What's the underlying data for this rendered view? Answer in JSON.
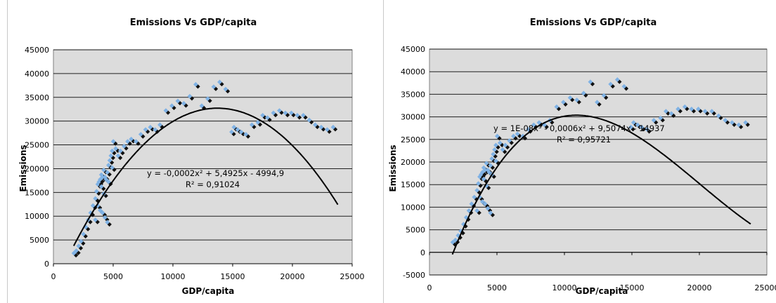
{
  "chart_data": [
    {
      "type": "scatter",
      "title": "Emissions Vs GDP/capita",
      "xlabel": "GDP/capita",
      "ylabel": "Emissions",
      "xlim": [
        0,
        25000
      ],
      "ylim": [
        0,
        45000
      ],
      "xticks": [
        0,
        5000,
        10000,
        15000,
        20000,
        25000
      ],
      "yticks": [
        0,
        5000,
        10000,
        15000,
        20000,
        25000,
        30000,
        35000,
        40000,
        45000
      ],
      "xtick_labels": [
        "0",
        "5000",
        "10000",
        "15000",
        "20000",
        "25000"
      ],
      "ytick_labels": [
        "0",
        "5000",
        "10000",
        "15000",
        "20000",
        "25000",
        "30000",
        "35000",
        "40000",
        "45000"
      ],
      "grid": "horizontal",
      "trendline": {
        "type": "polynomial",
        "degree": 2,
        "coefficients": [
          -0.0002,
          5.4925,
          -4994.9
        ],
        "equation": "y = -0,0002x² + 5,4925x - 4994,9",
        "r2": "R² = 0,91024",
        "x_range": [
          1700,
          23800
        ]
      },
      "colors": {
        "plot_bg": "#dcdcdc",
        "marker_dark": "#111111",
        "marker_light": "#7fb2e5",
        "line": "#000000"
      },
      "series": [
        {
          "x": [
            1800,
            2000,
            2200,
            2400,
            2600,
            2800,
            3000,
            3200,
            3400,
            3600,
            3700,
            3800,
            3900,
            4000,
            4100,
            4200,
            4300,
            4400,
            4500,
            4600,
            4700,
            4800,
            4900,
            5000,
            5100,
            5300,
            5500,
            5700,
            6000,
            6300,
            6600,
            7000,
            7400,
            7800,
            8200,
            8600,
            9000,
            9500,
            10000,
            10500,
            11000,
            11500,
            12000,
            12500,
            13000,
            13500,
            14000,
            14500,
            15000,
            15200,
            15500,
            15800,
            16200,
            16700,
            17200,
            17600,
            18000,
            18500,
            19000,
            19500,
            20000,
            20500,
            21000,
            21500,
            22000,
            22500,
            23000,
            23500,
            3800,
            4000,
            4200,
            4400,
            4600,
            3600,
            4100,
            4300,
            4700,
            5000
          ],
          "y": [
            2000,
            2500,
            3500,
            4500,
            6000,
            7500,
            9000,
            10500,
            12000,
            13500,
            15000,
            16500,
            17000,
            17500,
            18500,
            18000,
            19500,
            18000,
            17500,
            19000,
            20500,
            21500,
            22500,
            23500,
            25500,
            24000,
            22500,
            23500,
            24500,
            25500,
            26000,
            25500,
            27000,
            28000,
            28500,
            28000,
            29000,
            32000,
            33000,
            34000,
            33500,
            35000,
            37500,
            33000,
            34500,
            37000,
            38000,
            36500,
            27500,
            28500,
            28000,
            27500,
            27000,
            29000,
            29500,
            31000,
            30500,
            31500,
            32000,
            31500,
            31500,
            31000,
            31000,
            30000,
            29000,
            28500,
            28000,
            28500,
            12000,
            11000,
            10500,
            9500,
            8500,
            9000,
            16000,
            14500,
            17000,
            20000
          ]
        }
      ]
    },
    {
      "type": "scatter",
      "title": "Emissions Vs GDP/capita",
      "xlabel": "GDP/capita",
      "ylabel": "Emissions",
      "xlim": [
        0,
        25000
      ],
      "ylim": [
        -5000,
        45000
      ],
      "xticks": [
        0,
        5000,
        10000,
        15000,
        20000,
        25000
      ],
      "yticks": [
        -5000,
        0,
        5000,
        10000,
        15000,
        20000,
        25000,
        30000,
        35000,
        40000,
        45000
      ],
      "xtick_labels": [
        "0",
        "5000",
        "10000",
        "15000",
        "20000",
        "25000"
      ],
      "ytick_labels": [
        "-5000",
        "0",
        "5000",
        "10000",
        "15000",
        "20000",
        "25000",
        "30000",
        "35000",
        "40000",
        "45000"
      ],
      "grid": "horizontal",
      "trendline": {
        "type": "polynomial",
        "degree": 3,
        "equation": "y = 1E-08x³ - 0,0006x² + 9,5074x - 14937",
        "r2": "R² = 0,95721",
        "x_range": [
          1700,
          23800
        ]
      },
      "colors": {
        "plot_bg": "#dcdcdc",
        "marker_dark": "#111111",
        "marker_light": "#7fb2e5",
        "line": "#000000"
      },
      "series": [
        {
          "x": [
            1800,
            2000,
            2200,
            2400,
            2600,
            2800,
            3000,
            3200,
            3400,
            3600,
            3700,
            3800,
            3900,
            4000,
            4100,
            4200,
            4300,
            4400,
            4500,
            4600,
            4700,
            4800,
            4900,
            5000,
            5100,
            5300,
            5500,
            5700,
            6000,
            6300,
            6600,
            7000,
            7400,
            7800,
            8200,
            8600,
            9000,
            9500,
            10000,
            10500,
            11000,
            11500,
            12000,
            12500,
            13000,
            13500,
            14000,
            14500,
            15000,
            15200,
            15500,
            15800,
            16200,
            16700,
            17200,
            17600,
            18000,
            18500,
            19000,
            19500,
            20000,
            20500,
            21000,
            21500,
            22000,
            22500,
            23000,
            23500,
            3800,
            4000,
            4200,
            4400,
            4600,
            3600,
            4100,
            4300,
            4700,
            5000
          ],
          "y": [
            2000,
            2500,
            3500,
            4500,
            6000,
            7500,
            9000,
            10500,
            12000,
            13500,
            15000,
            16500,
            17000,
            17500,
            18500,
            18000,
            19500,
            18000,
            17500,
            19000,
            20500,
            21500,
            22500,
            23500,
            25500,
            24000,
            22500,
            23500,
            24500,
            25500,
            26000,
            25500,
            27000,
            28000,
            28500,
            28000,
            29000,
            32000,
            33000,
            34000,
            33500,
            35000,
            37500,
            33000,
            34500,
            37000,
            38000,
            36500,
            27500,
            28500,
            28000,
            27500,
            27000,
            29000,
            29500,
            31000,
            30500,
            31500,
            32000,
            31500,
            31500,
            31000,
            31000,
            30000,
            29000,
            28500,
            28000,
            28500,
            12000,
            11000,
            10500,
            9500,
            8500,
            9000,
            16000,
            14500,
            17000,
            20000
          ]
        }
      ]
    }
  ]
}
